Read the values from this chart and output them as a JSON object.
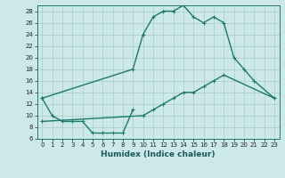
{
  "xlabel": "Humidex (Indice chaleur)",
  "bg_color": "#cde8e8",
  "line_color": "#1a7a6e",
  "grid_color": "#aacccc",
  "xlim": [
    -0.5,
    23.5
  ],
  "ylim": [
    6,
    29
  ],
  "xticks": [
    0,
    1,
    2,
    3,
    4,
    5,
    6,
    7,
    8,
    9,
    10,
    11,
    12,
    13,
    14,
    15,
    16,
    17,
    18,
    19,
    20,
    21,
    22,
    23
  ],
  "yticks": [
    6,
    8,
    10,
    12,
    14,
    16,
    18,
    20,
    22,
    24,
    26,
    28
  ],
  "top_x": [
    0,
    9,
    10,
    11,
    12,
    13,
    14,
    15,
    16,
    17,
    18,
    19,
    20,
    21,
    23
  ],
  "top_y": [
    13,
    18,
    24,
    27,
    28,
    28,
    29,
    27,
    26,
    27,
    26,
    20,
    18,
    16,
    13
  ],
  "mid_x": [
    0,
    10,
    11,
    12,
    13,
    14,
    15,
    16,
    17,
    18,
    23
  ],
  "mid_y": [
    9,
    10,
    11,
    12,
    13,
    14,
    14,
    15,
    16,
    17,
    13
  ],
  "bot_x": [
    0,
    1,
    2,
    3,
    4,
    5,
    6,
    7,
    8,
    9
  ],
  "bot_y": [
    13,
    10,
    9,
    9,
    9,
    7,
    7,
    7,
    7,
    11
  ],
  "marker_size": 3.5,
  "line_width": 1.0,
  "xlabel_fontsize": 6.5,
  "tick_fontsize": 5.0
}
